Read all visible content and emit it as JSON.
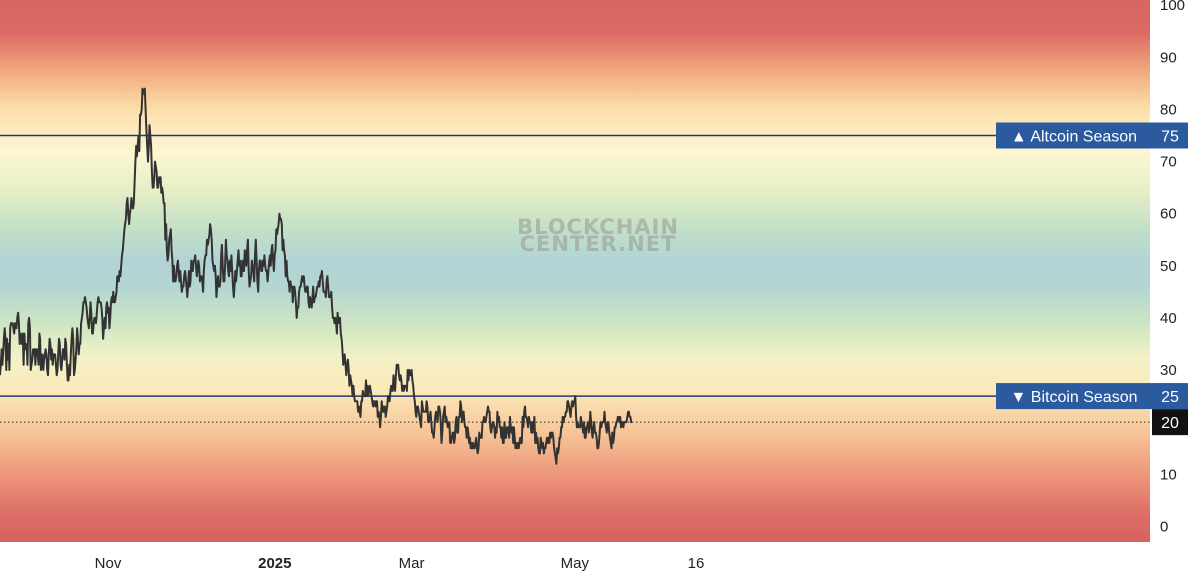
{
  "chart_data": {
    "type": "line",
    "ylim": [
      -3,
      101
    ],
    "y_ticks": [
      "0",
      "10",
      "20",
      "30",
      "40",
      "50",
      "60",
      "70",
      "80",
      "90",
      "100"
    ],
    "x_ticks": [
      {
        "label": "Nov",
        "x": 0.09,
        "bold": false
      },
      {
        "label": "2025",
        "x": 0.229,
        "bold": true
      },
      {
        "label": "Mar",
        "x": 0.343,
        "bold": false
      },
      {
        "label": "May",
        "x": 0.479,
        "bold": false
      },
      {
        "label": "16",
        "x": 0.58,
        "bold": false
      }
    ],
    "series": [
      {
        "color": "#333333",
        "values": [
          29,
          31,
          34,
          31,
          33,
          36,
          38,
          36,
          30,
          36,
          32,
          35,
          30,
          38,
          39,
          39,
          39,
          38,
          37,
          39,
          38,
          38,
          40,
          41,
          39,
          35,
          37,
          36,
          35,
          37,
          31,
          37,
          34,
          35,
          34,
          31,
          39,
          40,
          38,
          30,
          31,
          32,
          34,
          33,
          34,
          31,
          34,
          34,
          33,
          31,
          37,
          36,
          30,
          31,
          33,
          30,
          32,
          33,
          34,
          33,
          30,
          29,
          33,
          36,
          35,
          32,
          34,
          31,
          33,
          33,
          33,
          31,
          29,
          30,
          33,
          36,
          35,
          31,
          30,
          32,
          34,
          34,
          32,
          36,
          35,
          31,
          28,
          28,
          31,
          29,
          33,
          36,
          38,
          36,
          29,
          30,
          32,
          34,
          38,
          36,
          33,
          35,
          35,
          39,
          40,
          41,
          43,
          43,
          44,
          43,
          42,
          40,
          39,
          38,
          40,
          43,
          41,
          37,
          37,
          39,
          40,
          40,
          39,
          41,
          43,
          44,
          43,
          43,
          43,
          42,
          40,
          36,
          38,
          40,
          38,
          42,
          43,
          41,
          42,
          38,
          40,
          43,
          44,
          43,
          45,
          43,
          43,
          44,
          45,
          48,
          48,
          47,
          49,
          48,
          50,
          52,
          53,
          55,
          57,
          58,
          59,
          62,
          63,
          60,
          58,
          60,
          61,
          63,
          62,
          61,
          62,
          66,
          70,
          73,
          71,
          73,
          75,
          72,
          79,
          79,
          80,
          84,
          83,
          83,
          84,
          80,
          76,
          73,
          70,
          73,
          77,
          75,
          73,
          68,
          65,
          65,
          67,
          70,
          69,
          68,
          65,
          65,
          67,
          66,
          67,
          64,
          65,
          64,
          62,
          62,
          55,
          58,
          53,
          51,
          52,
          55,
          56,
          57,
          53,
          51,
          47,
          50,
          47,
          47,
          48,
          50,
          51,
          49,
          47,
          49,
          47,
          45,
          46,
          46,
          48,
          49,
          48,
          46,
          44,
          46,
          49,
          46,
          47,
          51,
          49,
          49,
          51,
          51,
          52,
          50,
          48,
          49,
          51,
          50,
          47,
          48,
          48,
          47,
          45,
          49,
          51,
          52,
          52,
          55,
          54,
          55,
          56,
          58,
          57,
          55,
          51,
          50,
          49,
          50,
          48,
          44,
          46,
          48,
          46,
          46,
          47,
          52,
          54,
          50,
          47,
          47,
          50,
          55,
          52,
          51,
          49,
          48,
          51,
          49,
          52,
          49,
          46,
          44,
          46,
          49,
          47,
          49,
          51,
          53,
          50,
          51,
          48,
          48,
          51,
          49,
          49,
          53,
          52,
          50,
          53,
          55,
          49,
          46,
          47,
          48,
          51,
          50,
          49,
          47,
          52,
          55,
          51,
          47,
          45,
          49,
          51,
          51,
          49,
          49,
          51,
          50,
          52,
          50,
          49,
          49,
          47,
          49,
          51,
          52,
          50,
          53,
          54,
          51,
          49,
          52,
          53,
          57,
          56,
          57,
          58,
          60,
          59,
          59,
          58,
          53,
          55,
          53,
          52,
          48,
          51,
          48,
          47,
          47,
          45,
          47,
          46,
          46,
          43,
          46,
          46,
          45,
          43,
          40,
          42,
          42,
          45,
          46,
          46,
          47,
          48,
          47,
          48,
          46,
          45,
          45,
          46,
          46,
          43,
          42,
          44,
          43,
          42,
          44,
          46,
          43,
          44,
          44,
          45,
          46,
          46,
          47,
          46,
          48,
          48,
          49,
          47,
          45,
          45,
          45,
          44,
          47,
          48,
          46,
          44,
          44,
          44,
          45,
          42,
          40,
          40,
          39,
          40,
          39,
          37,
          41,
          39,
          40,
          40,
          37,
          36,
          34,
          31,
          32,
          33,
          31,
          29,
          31,
          32,
          30,
          27,
          29,
          28,
          27,
          25,
          27,
          25,
          24,
          24,
          24,
          24,
          22,
          23,
          22,
          21,
          24,
          24,
          26,
          25,
          25,
          25,
          28,
          25,
          27,
          25,
          26,
          27,
          26,
          25,
          24,
          23,
          24,
          24,
          23,
          24,
          24,
          21,
          22,
          21,
          19,
          21,
          24,
          22,
          23,
          22,
          23,
          21,
          22,
          23,
          25,
          25,
          24,
          26,
          27,
          26,
          26,
          29,
          27,
          26,
          29,
          31,
          31,
          31,
          29,
          28,
          29,
          28,
          26,
          27,
          26,
          27,
          27,
          27,
          26,
          30,
          28,
          30,
          29,
          29,
          30,
          28,
          27,
          25,
          24,
          22,
          21,
          23,
          23,
          22,
          21,
          20,
          19,
          24,
          23,
          22,
          22,
          22,
          22,
          24,
          23,
          20,
          20,
          21,
          22,
          20,
          18,
          18,
          17,
          19,
          21,
          22,
          21,
          20,
          23,
          23,
          22,
          20,
          16,
          18,
          21,
          22,
          23,
          20,
          21,
          20,
          19,
          19,
          20,
          16,
          16,
          17,
          18,
          18,
          16,
          17,
          20,
          21,
          18,
          18,
          21,
          21,
          24,
          23,
          20,
          22,
          22,
          20,
          19,
          19,
          17,
          19,
          18,
          16,
          17,
          15,
          16,
          15,
          16,
          15,
          15,
          16,
          17,
          15,
          14,
          15,
          18,
          17,
          17,
          17,
          20,
          20,
          21,
          20,
          20,
          21,
          22,
          23,
          22,
          22,
          19,
          18,
          19,
          20,
          20,
          19,
          17,
          19,
          18,
          22,
          20,
          21,
          19,
          19,
          17,
          19,
          16,
          16,
          20,
          17,
          17,
          19,
          18,
          19,
          17,
          21,
          19,
          18,
          19,
          16,
          19,
          17,
          15,
          16,
          15,
          16,
          15,
          16,
          17,
          16,
          16,
          21,
          19,
          22,
          23,
          21,
          21,
          20,
          19,
          21,
          20,
          20,
          18,
          20,
          18,
          19,
          21,
          16,
          18,
          16,
          17,
          15,
          14,
          14,
          17,
          16,
          15,
          16,
          14,
          15,
          15,
          16,
          17,
          16,
          17,
          16,
          18,
          17,
          18,
          18,
          17,
          15,
          14,
          13,
          12,
          15,
          14,
          15,
          17,
          17,
          19,
          19,
          21,
          20,
          21,
          21,
          22,
          22,
          24,
          24,
          23,
          22,
          21,
          23,
          24,
          23,
          24,
          24,
          25,
          21,
          19,
          20,
          19,
          19,
          19,
          21,
          20,
          19,
          18,
          20,
          17,
          17,
          19,
          19,
          20,
          18,
          19,
          22,
          20,
          18,
          17,
          19,
          20,
          18,
          18,
          17,
          15,
          15,
          16,
          18,
          20,
          19,
          20,
          20,
          20,
          22,
          20,
          19,
          18,
          20,
          20,
          18,
          17,
          16,
          15,
          18,
          16,
          17,
          19,
          19,
          20,
          20,
          21,
          21,
          20,
          21,
          19,
          20,
          20,
          19,
          20,
          20,
          20,
          20,
          21,
          22,
          22,
          21,
          21,
          20,
          20
        ]
      }
    ],
    "levels": [
      {
        "label": "▲ Altcoin Season",
        "value": 75,
        "value_label": "75",
        "line_color": "#1f3a7a",
        "box_color": "#2c5a9e"
      },
      {
        "label": "▼ Bitcoin Season",
        "value": 25,
        "value_label": "25",
        "line_color": "#1f3a7a",
        "box_color": "#2c5a9e"
      }
    ],
    "current": {
      "value": 20,
      "value_label": "20",
      "box_color": "#111111"
    },
    "watermark": [
      "BLOCKCHAIN",
      "CENTER.NET"
    ]
  }
}
